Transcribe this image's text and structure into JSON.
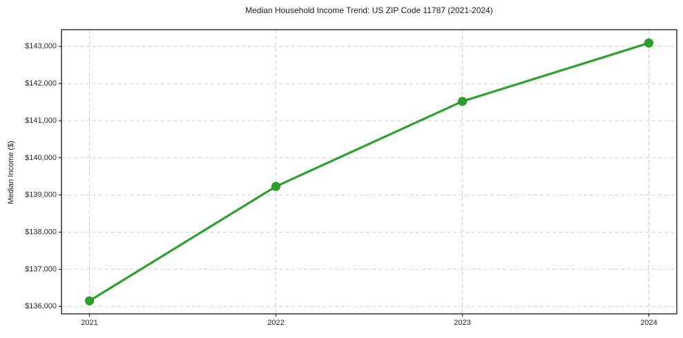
{
  "chart_data": {
    "type": "line",
    "title": "Median Household Income Trend: US ZIP Code 11787 (2021-2024)",
    "xlabel": "",
    "ylabel": "Median Income ($)",
    "x": [
      2021,
      2022,
      2023,
      2024
    ],
    "x_tick_labels": [
      "2021",
      "2022",
      "2023",
      "2024"
    ],
    "series": [
      {
        "values": [
          136150,
          139230,
          141520,
          143090
        ],
        "color": "#2ca02c",
        "marker": "circle"
      }
    ],
    "y_ticks": [
      {
        "value": 136000,
        "label": "$136,000"
      },
      {
        "value": 137000,
        "label": "$137,000"
      },
      {
        "value": 138000,
        "label": "$138,000"
      },
      {
        "value": 139000,
        "label": "$139,000"
      },
      {
        "value": 140000,
        "label": "$140,000"
      },
      {
        "value": 141000,
        "label": "$141,000"
      },
      {
        "value": 142000,
        "label": "$142,000"
      },
      {
        "value": 143000,
        "label": "$143,000"
      }
    ],
    "xlim": [
      2020.85,
      2024.15
    ],
    "ylim": [
      135800,
      143450
    ],
    "grid": true,
    "grid_style": "dashed",
    "legend": "none",
    "colors": {
      "line": "#2ca02c",
      "marker_fill": "#2ca02c",
      "marker_edge": "#1f8b1f",
      "grid": "#cccccc",
      "axis_frame": "#000000",
      "tick_text": "#262626",
      "background": "#ffffff"
    }
  }
}
